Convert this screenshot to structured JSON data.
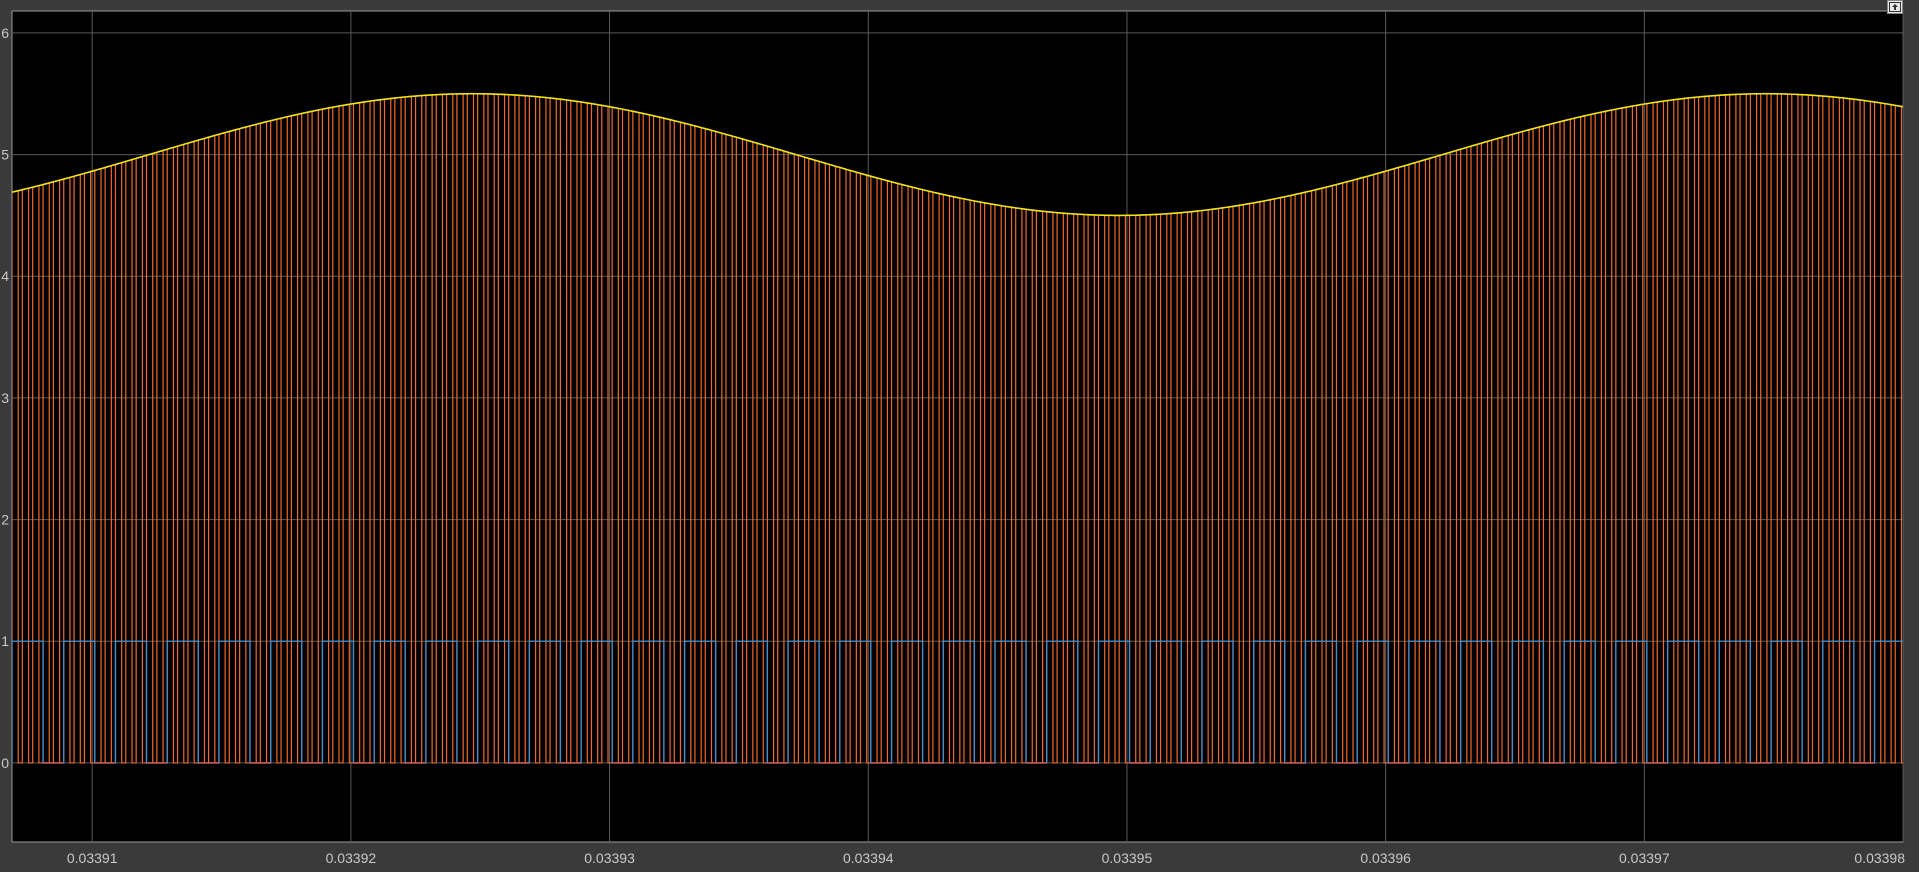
{
  "window": {
    "undock_icon": "undock-icon"
  },
  "colors": {
    "background": "#3a3a3a",
    "plot_area": "#000000",
    "grid": "#5a5a5a",
    "axis_text": "#c8c8c8",
    "sine": "#f2e418",
    "pwm_output": "#ee6a2c",
    "pulse": "#3b8fd6",
    "pulse_low": "#e0564a"
  },
  "chart_data": {
    "type": "line",
    "title": "",
    "xlabel": "",
    "ylabel": "",
    "xlim": [
      0.0339069,
      0.03398
    ],
    "ylim": [
      -0.65,
      6.18
    ],
    "grid": true,
    "legend": "none",
    "xticks": [
      0.03391,
      0.03392,
      0.03393,
      0.03394,
      0.03395,
      0.03396,
      0.03397,
      0.03398
    ],
    "xtick_labels": [
      "0.03391",
      "0.03392",
      "0.03393",
      "0.03394",
      "0.03395",
      "0.03396",
      "0.03397",
      "0.03398"
    ],
    "yticks": [
      0,
      1,
      2,
      3,
      4,
      5,
      6
    ],
    "ytick_labels": [
      "0",
      "1",
      "2",
      "3",
      "4",
      "5",
      "6"
    ],
    "series": [
      {
        "kind": "sine",
        "offset": 5.0,
        "amplitude": 0.5,
        "period": 5e-05,
        "peak_at": 0.0339247,
        "color": "#f2e418"
      },
      {
        "kind": "pwm_envelope",
        "low": 0,
        "period": 4e-07,
        "duty": 0.6,
        "first_edge": 0.0339069,
        "envelope": "sine",
        "color": "#ee6a2c"
      },
      {
        "kind": "pulse",
        "low": 0,
        "high": 1,
        "period": 2e-06,
        "duty": 0.6,
        "first_edge": 0.0339069,
        "color": "#3b8fd6"
      }
    ]
  }
}
